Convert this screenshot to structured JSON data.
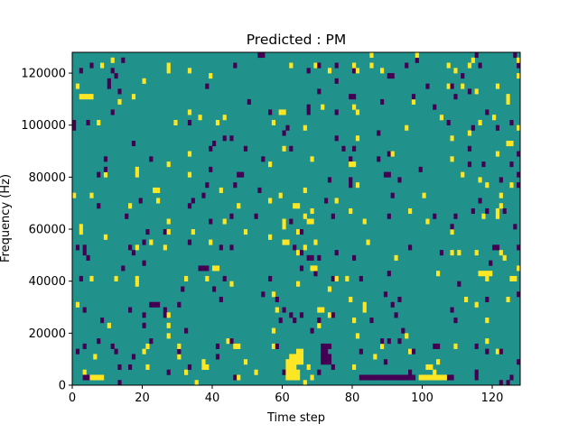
{
  "chart_data": {
    "type": "heatmap",
    "title": "Predicted : PM",
    "xlabel": "Time step",
    "ylabel": "Frequency (Hz)",
    "xlim": [
      0,
      128
    ],
    "ylim": [
      0,
      128000
    ],
    "x_ticks": [
      0,
      20,
      40,
      60,
      80,
      100,
      120
    ],
    "y_ticks": [
      0,
      20000,
      40000,
      60000,
      80000,
      100000,
      120000
    ],
    "n_time_steps": 128,
    "n_freq_bins": 64,
    "colormap": {
      "background": "#21918c",
      "low": "#440154",
      "high": "#fde725"
    },
    "low_cells": [
      [
        3,
        2
      ],
      [
        4,
        2
      ],
      [
        82,
        2
      ],
      [
        83,
        2
      ],
      [
        84,
        2
      ],
      [
        85,
        2
      ],
      [
        86,
        2
      ],
      [
        87,
        2
      ],
      [
        88,
        2
      ],
      [
        89,
        2
      ],
      [
        90,
        2
      ],
      [
        91,
        2
      ],
      [
        92,
        2
      ],
      [
        93,
        2
      ],
      [
        94,
        2
      ],
      [
        95,
        2
      ],
      [
        96,
        2
      ],
      [
        97,
        2
      ],
      [
        107,
        2
      ],
      [
        108,
        2
      ],
      [
        71,
        8
      ],
      [
        72,
        8
      ],
      [
        73,
        8
      ],
      [
        71,
        10
      ],
      [
        72,
        10
      ],
      [
        73,
        10
      ],
      [
        71,
        12
      ],
      [
        72,
        12
      ],
      [
        71,
        14
      ],
      [
        72,
        14
      ],
      [
        22,
        30
      ],
      [
        23,
        30
      ],
      [
        36,
        44
      ],
      [
        37,
        44
      ],
      [
        38,
        44
      ],
      [
        120,
        52
      ],
      [
        121,
        52
      ],
      [
        127,
        52
      ],
      [
        128,
        52
      ],
      [
        125,
        100
      ],
      [
        127,
        88
      ],
      [
        13,
        112
      ],
      [
        15,
        64
      ],
      [
        47,
        80
      ],
      [
        48,
        80
      ],
      [
        22,
        86
      ],
      [
        60,
        96
      ],
      [
        75,
        104
      ],
      [
        109,
        24
      ],
      [
        74,
        26
      ],
      [
        110,
        38
      ]
    ],
    "high_cells": [
      [
        5,
        2
      ],
      [
        6,
        2
      ],
      [
        7,
        2
      ],
      [
        8,
        2
      ],
      [
        61,
        2
      ],
      [
        62,
        2
      ],
      [
        63,
        2
      ],
      [
        64,
        2
      ],
      [
        99,
        2
      ],
      [
        100,
        2
      ],
      [
        101,
        2
      ],
      [
        102,
        2
      ],
      [
        103,
        2
      ],
      [
        104,
        2
      ],
      [
        105,
        2
      ],
      [
        106,
        2
      ],
      [
        61,
        4
      ],
      [
        62,
        4
      ],
      [
        63,
        4
      ],
      [
        64,
        4
      ],
      [
        61,
        6
      ],
      [
        62,
        6
      ],
      [
        63,
        6
      ],
      [
        61,
        8
      ],
      [
        62,
        8
      ],
      [
        63,
        8
      ],
      [
        64,
        8
      ],
      [
        65,
        8
      ],
      [
        62,
        10
      ],
      [
        63,
        10
      ],
      [
        64,
        10
      ],
      [
        65,
        10
      ],
      [
        64,
        12
      ],
      [
        65,
        12
      ],
      [
        70,
        28
      ],
      [
        71,
        28
      ],
      [
        68,
        44
      ],
      [
        69,
        44
      ],
      [
        116,
        42
      ],
      [
        117,
        42
      ],
      [
        118,
        42
      ],
      [
        2,
        110
      ],
      [
        3,
        110
      ],
      [
        4,
        110
      ],
      [
        5,
        110
      ],
      [
        60,
        54
      ],
      [
        61,
        54
      ],
      [
        63,
        68
      ],
      [
        64,
        68
      ],
      [
        79,
        84
      ],
      [
        80,
        84
      ],
      [
        124,
        92
      ],
      [
        125,
        92
      ]
    ],
    "sparse_seed": 42,
    "sparse_density": 0.045
  }
}
